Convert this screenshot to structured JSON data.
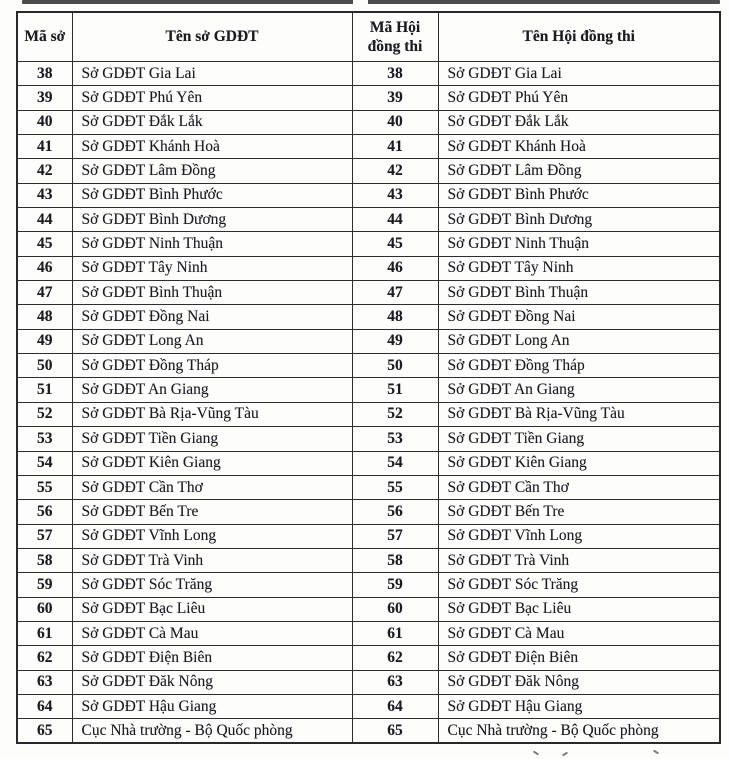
{
  "colors": {
    "text": "#1b1b22",
    "border": "#2c2c31",
    "background": "#fdfdfc"
  },
  "table": {
    "headers": [
      "Mã sở",
      "Tên sở GDĐT",
      "Mã Hội đồng thi",
      "Tên Hội đồng thi"
    ],
    "rows": [
      {
        "ma_so": "38",
        "ten_so": "Sở GDĐT Gia Lai",
        "ma_hoi_dong": "38",
        "ten_hoi_dong": "Sở GDĐT Gia Lai"
      },
      {
        "ma_so": "39",
        "ten_so": "Sở GDĐT Phú Yên",
        "ma_hoi_dong": "39",
        "ten_hoi_dong": "Sở GDĐT Phú Yên"
      },
      {
        "ma_so": "40",
        "ten_so": "Sở GDĐT Đắk Lắk",
        "ma_hoi_dong": "40",
        "ten_hoi_dong": "Sở GDĐT Đắk Lắk"
      },
      {
        "ma_so": "41",
        "ten_so": "Sở GDĐT Khánh Hoà",
        "ma_hoi_dong": "41",
        "ten_hoi_dong": "Sở GDĐT Khánh Hoà"
      },
      {
        "ma_so": "42",
        "ten_so": "Sở GDĐT Lâm Đồng",
        "ma_hoi_dong": "42",
        "ten_hoi_dong": "Sở GDĐT Lâm Đồng"
      },
      {
        "ma_so": "43",
        "ten_so": "Sở GDĐT Bình Phước",
        "ma_hoi_dong": "43",
        "ten_hoi_dong": "Sở GDĐT Bình Phước"
      },
      {
        "ma_so": "44",
        "ten_so": "Sở GDĐT Bình Dương",
        "ma_hoi_dong": "44",
        "ten_hoi_dong": "Sở GDĐT Bình Dương"
      },
      {
        "ma_so": "45",
        "ten_so": "Sở GDĐT Ninh Thuận",
        "ma_hoi_dong": "45",
        "ten_hoi_dong": "Sở GDĐT Ninh Thuận"
      },
      {
        "ma_so": "46",
        "ten_so": "Sở GDĐT Tây Ninh",
        "ma_hoi_dong": "46",
        "ten_hoi_dong": "Sở GDĐT Tây Ninh"
      },
      {
        "ma_so": "47",
        "ten_so": "Sở GDĐT Bình Thuận",
        "ma_hoi_dong": "47",
        "ten_hoi_dong": "Sở GDĐT Bình Thuận"
      },
      {
        "ma_so": "48",
        "ten_so": "Sở GDĐT Đồng Nai",
        "ma_hoi_dong": "48",
        "ten_hoi_dong": "Sở GDĐT Đồng Nai"
      },
      {
        "ma_so": "49",
        "ten_so": "Sở GDĐT Long An",
        "ma_hoi_dong": "49",
        "ten_hoi_dong": "Sở GDĐT Long An"
      },
      {
        "ma_so": "50",
        "ten_so": "Sở GDĐT Đồng Tháp",
        "ma_hoi_dong": "50",
        "ten_hoi_dong": "Sở GDĐT Đồng Tháp"
      },
      {
        "ma_so": "51",
        "ten_so": "Sở GDĐT An Giang",
        "ma_hoi_dong": "51",
        "ten_hoi_dong": "Sở GDĐT An Giang"
      },
      {
        "ma_so": "52",
        "ten_so": "Sở GDĐT Bà Rịa-Vũng Tàu",
        "ma_hoi_dong": "52",
        "ten_hoi_dong": "Sở GDĐT Bà Rịa-Vũng Tàu"
      },
      {
        "ma_so": "53",
        "ten_so": "Sở GDĐT Tiền Giang",
        "ma_hoi_dong": "53",
        "ten_hoi_dong": "Sở GDĐT Tiền Giang"
      },
      {
        "ma_so": "54",
        "ten_so": "Sở GDĐT Kiên Giang",
        "ma_hoi_dong": "54",
        "ten_hoi_dong": "Sở GDĐT Kiên Giang"
      },
      {
        "ma_so": "55",
        "ten_so": "Sở GDĐT Cần Thơ",
        "ma_hoi_dong": "55",
        "ten_hoi_dong": "Sở GDĐT Cần Thơ"
      },
      {
        "ma_so": "56",
        "ten_so": "Sở GDĐT Bến Tre",
        "ma_hoi_dong": "56",
        "ten_hoi_dong": "Sở GDĐT Bến Tre"
      },
      {
        "ma_so": "57",
        "ten_so": "Sở GDĐT Vĩnh Long",
        "ma_hoi_dong": "57",
        "ten_hoi_dong": "Sở GDĐT Vĩnh Long"
      },
      {
        "ma_so": "58",
        "ten_so": "Sở GDĐT Trà Vinh",
        "ma_hoi_dong": "58",
        "ten_hoi_dong": "Sở GDĐT Trà Vinh"
      },
      {
        "ma_so": "59",
        "ten_so": "Sở GDĐT Sóc Trăng",
        "ma_hoi_dong": "59",
        "ten_hoi_dong": "Sở GDĐT Sóc Trăng"
      },
      {
        "ma_so": "60",
        "ten_so": "Sở GDĐT Bạc Liêu",
        "ma_hoi_dong": "60",
        "ten_hoi_dong": "Sở GDĐT Bạc Liêu"
      },
      {
        "ma_so": "61",
        "ten_so": "Sở GDĐT Cà Mau",
        "ma_hoi_dong": "61",
        "ten_hoi_dong": "Sở GDĐT Cà Mau"
      },
      {
        "ma_so": "62",
        "ten_so": "Sở GDĐT Điện Biên",
        "ma_hoi_dong": "62",
        "ten_hoi_dong": "Sở GDĐT Điện Biên"
      },
      {
        "ma_so": "63",
        "ten_so": "Sở GDĐT Đăk Nông",
        "ma_hoi_dong": "63",
        "ten_hoi_dong": "Sở GDĐT Đăk Nông"
      },
      {
        "ma_so": "64",
        "ten_so": "Sở GDĐT Hậu Giang",
        "ma_hoi_dong": "64",
        "ten_hoi_dong": "Sở GDĐT Hậu Giang"
      },
      {
        "ma_so": "65",
        "ten_so": "Cục Nhà trường - Bộ Quốc phòng",
        "ma_hoi_dong": "65",
        "ten_hoi_dong": "Cục Nhà trường - Bộ Quốc phòng"
      }
    ]
  }
}
